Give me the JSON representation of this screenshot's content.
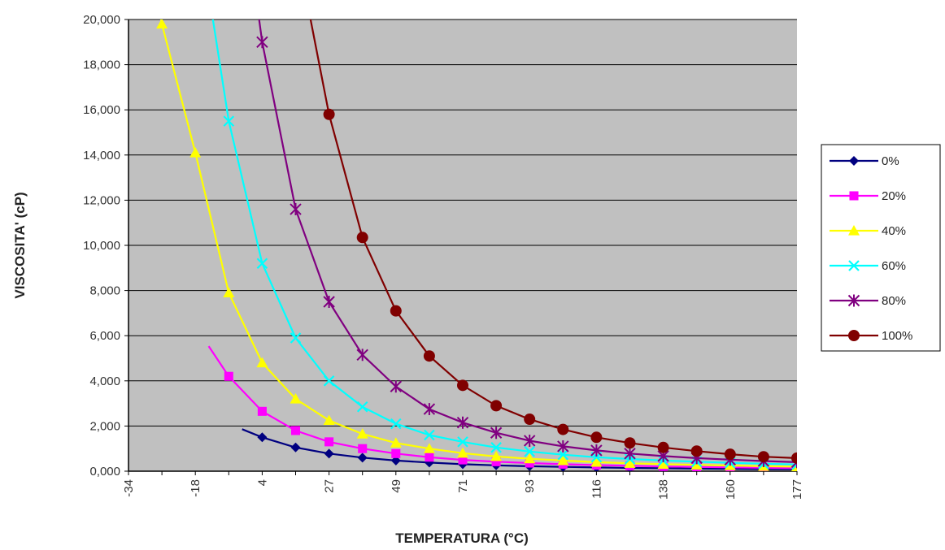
{
  "chart_data": {
    "type": "line",
    "title": "",
    "xlabel": "TEMPERATURA (°C)",
    "ylabel": "VISCOSITA' (cP)",
    "ylim": [
      0,
      20000
    ],
    "yticks": [
      "0,000",
      "2,000",
      "4,000",
      "6,000",
      "8,000",
      "10,000",
      "12,000",
      "14,000",
      "16,000",
      "18,000",
      "20,000"
    ],
    "categories": [
      "-34",
      "-29",
      "-18",
      "-12",
      "4",
      "10",
      "27",
      "38",
      "49",
      "60",
      "71",
      "82",
      "93",
      "104",
      "116",
      "127",
      "138",
      "149",
      "160",
      "171",
      "177"
    ],
    "tick_labels": [
      "-34",
      "",
      "-18",
      "",
      "4",
      "",
      "27",
      "",
      "49",
      "",
      "71",
      "",
      "93",
      "",
      "116",
      "",
      "138",
      "",
      "160",
      "",
      "177"
    ],
    "grid": true,
    "legend_position": "right",
    "series": [
      {
        "name": "0%",
        "color": "#000080",
        "marker": "diamond",
        "values": [
          null,
          null,
          null,
          null,
          1500,
          1050,
          780,
          600,
          470,
          380,
          310,
          260,
          220,
          190,
          165,
          145,
          130,
          115,
          105,
          95,
          90
        ]
      },
      {
        "name": "20%",
        "color": "#ff00ff",
        "marker": "square",
        "values": [
          null,
          null,
          null,
          4200,
          2650,
          1800,
          1300,
          1000,
          780,
          620,
          500,
          420,
          360,
          310,
          270,
          240,
          210,
          190,
          170,
          150,
          140
        ]
      },
      {
        "name": "40%",
        "color": "#ffff00",
        "marker": "triangle",
        "values": [
          null,
          19800,
          14100,
          7900,
          4800,
          3200,
          2250,
          1650,
          1250,
          1000,
          800,
          650,
          550,
          470,
          400,
          350,
          310,
          280,
          250,
          220,
          200
        ]
      },
      {
        "name": "60%",
        "color": "#00ffff",
        "marker": "x",
        "values": [
          null,
          null,
          null,
          15500,
          9200,
          5900,
          4000,
          2850,
          2100,
          1600,
          1300,
          1050,
          870,
          730,
          620,
          540,
          470,
          420,
          370,
          330,
          300
        ]
      },
      {
        "name": "80%",
        "color": "#800080",
        "marker": "star",
        "values": [
          null,
          null,
          null,
          null,
          19000,
          11600,
          7500,
          5150,
          3750,
          2750,
          2150,
          1700,
          1350,
          1100,
          920,
          780,
          670,
          580,
          510,
          450,
          400
        ]
      },
      {
        "name": "100%",
        "color": "#800000",
        "marker": "circle",
        "values": [
          null,
          null,
          null,
          null,
          null,
          null,
          15800,
          10350,
          7100,
          5100,
          3800,
          2900,
          2300,
          1850,
          1500,
          1250,
          1050,
          890,
          750,
          640,
          580
        ]
      }
    ]
  }
}
